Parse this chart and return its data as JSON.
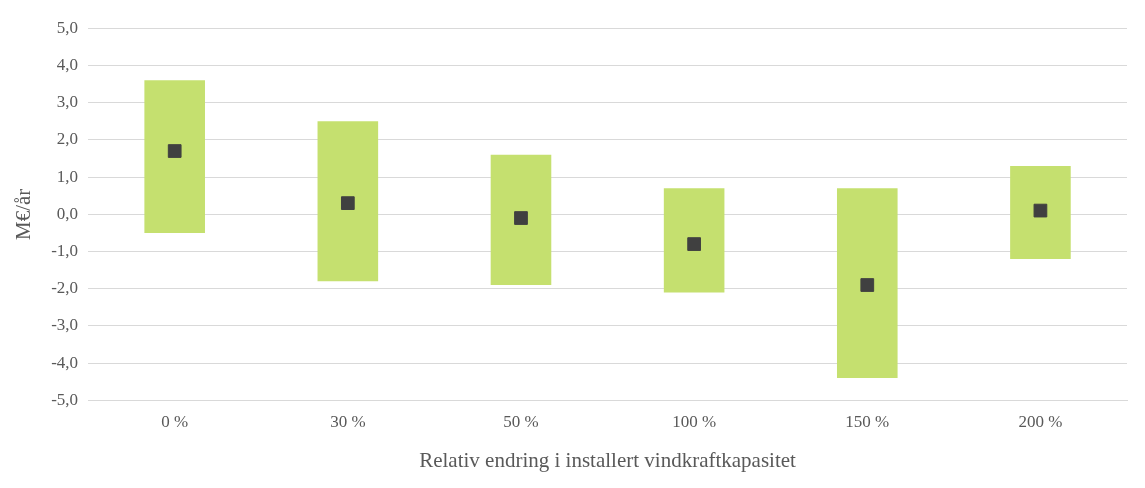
{
  "chart_data": {
    "type": "bar",
    "xlabel": "Relativ endring i installert vindkraftkapasitet",
    "ylabel": "M€/år",
    "categories": [
      "0 %",
      "30 %",
      "50 %",
      "100 %",
      "150 %",
      "200 %"
    ],
    "series": [
      {
        "color": "#c5e06f",
        "base": [
          -0.5,
          -1.8,
          -1.9,
          -2.1,
          -4.4,
          -1.2
        ],
        "values": [
          4.1,
          4.3,
          3.5,
          2.8,
          5.1,
          2.5
        ]
      },
      {
        "type": "scatter",
        "color": "#404040",
        "marker": "square",
        "x": [
          "0 %",
          "30 %",
          "50 %",
          "100 %",
          "150 %",
          "200 %"
        ],
        "values": [
          1.7,
          0.3,
          -0.1,
          -0.8,
          -1.9,
          0.1
        ]
      }
    ],
    "ylim": [
      -5,
      5
    ],
    "yticks": [
      {
        "value": -5,
        "label": "-5,0"
      },
      {
        "value": -4,
        "label": "-4,0"
      },
      {
        "value": -3,
        "label": "-3,0"
      },
      {
        "value": -2,
        "label": "-2,0"
      },
      {
        "value": -1,
        "label": "-1,0"
      },
      {
        "value": 0,
        "label": "0,0"
      },
      {
        "value": 1,
        "label": "1,0"
      },
      {
        "value": 2,
        "label": "2,0"
      },
      {
        "value": 3,
        "label": "3,0"
      },
      {
        "value": 4,
        "label": "4,0"
      },
      {
        "value": 5,
        "label": "5,0"
      }
    ],
    "grid": "y"
  }
}
